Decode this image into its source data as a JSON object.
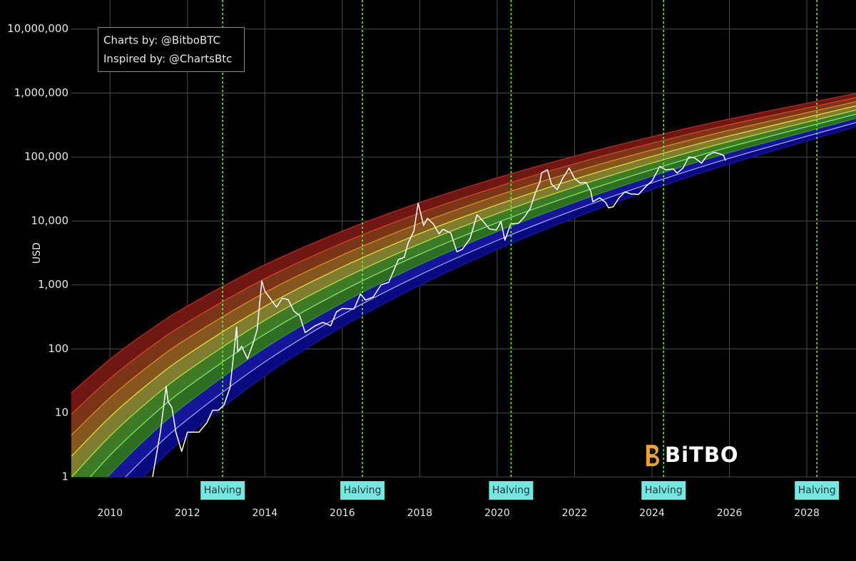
{
  "chart_data": {
    "type": "line",
    "y_scale": "log",
    "y_label": "USD",
    "credits": [
      "Charts by: @BitboBTC",
      "Inspired by: @ChartsBtc"
    ],
    "logo": "BiTBO",
    "grid": true,
    "xlim": [
      2009,
      2029.27
    ],
    "xticks": [
      2010,
      2012,
      2014,
      2016,
      2018,
      2020,
      2022,
      2024,
      2026,
      2028
    ],
    "ylim": [
      1,
      28400000
    ],
    "yticks": [
      1,
      10,
      100,
      {
        "value": 1000,
        "label": "1,000"
      },
      {
        "value": 10000,
        "label": "10,000"
      },
      {
        "value": 100000,
        "label": "100,000"
      },
      {
        "value": 1000000,
        "label": "1,000,000"
      },
      {
        "value": 10000000,
        "label": "10,000,000"
      }
    ],
    "halvings": [
      {
        "x": 2012.91,
        "label": "Halving"
      },
      {
        "x": 2016.52,
        "label": "Halving"
      },
      {
        "x": 2020.36,
        "label": "Halving"
      },
      {
        "x": 2024.3,
        "label": "Halving"
      },
      {
        "x": 2028.26,
        "label": "Halving"
      }
    ],
    "halving_color": "#7cf050",
    "bands": {
      "x": [
        2009,
        2010,
        2011,
        2012,
        2014,
        2016,
        2018,
        2020,
        2022,
        2024,
        2026,
        2029.27
      ],
      "fill_colors": [
        "#6e1713",
        "#7a3518",
        "#86561f",
        "#807c30",
        "#3f7a26",
        "#2f6e22",
        "#16169a",
        "#0a0a80"
      ],
      "edges": [
        {
          "color": "#b8302a",
          "values": [
            20.5,
            68.9,
            192,
            468,
            2065,
            6930,
            19400,
            47100,
            103000,
            208000,
            392000,
            986000
          ]
        },
        {
          "color": "#e0442e",
          "values": [
            9.57,
            34.5,
            102,
            261,
            1253,
            4510,
            13300,
            34100,
            78200,
            164000,
            320000,
            849000
          ]
        },
        {
          "color": "#e8892e",
          "values": [
            4.48,
            17.3,
            54.2,
            146,
            760,
            2930,
            9200,
            24800,
            59200,
            129000,
            262000,
            731000
          ]
        },
        {
          "color": "#f0e040",
          "values": [
            2.09,
            8.67,
            28.8,
            81.5,
            462,
            1910,
            6340,
            17900,
            44900,
            102000,
            214000,
            630000
          ]
        },
        {
          "color": "#c8e040",
          "values": [
            0.98,
            4.35,
            15.3,
            45.4,
            281,
            1240,
            4380,
            13000,
            34000,
            80400,
            175000,
            542000
          ]
        },
        {
          "color": "#7cf070",
          "values": [
            0.458,
            2.18,
            8.11,
            25.4,
            170,
            807,
            3010,
            9420,
            25800,
            63400,
            143000,
            467000
          ]
        },
        {
          "color": "#2a9a2a",
          "values": [
            0.214,
            1.09,
            4.31,
            14.2,
            103,
            525,
            2070,
            6820,
            19500,
            50000,
            117000,
            402000
          ]
        },
        {
          "color": "#a8a8ff",
          "values": [
            0.1,
            0.547,
            2.29,
            7.91,
            62.7,
            342,
            1430,
            4950,
            14800,
            39400,
            95500,
            346000
          ]
        },
        {
          "color": "#1818b0",
          "values": [
            0.0468,
            0.273,
            1.21,
            4.4,
            38.1,
            222,
            986,
            3590,
            11200,
            31000,
            78000,
            298000
          ]
        }
      ]
    },
    "series": [
      {
        "color": "#ffffff",
        "x": [
          2011.1,
          2011.3,
          2011.45,
          2011.5,
          2011.6,
          2011.7,
          2011.85,
          2012.0,
          2012.15,
          2012.3,
          2012.5,
          2012.65,
          2012.8,
          2012.95,
          2013.1,
          2013.27,
          2013.3,
          2013.4,
          2013.55,
          2013.7,
          2013.8,
          2013.92,
          2014.0,
          2014.15,
          2014.3,
          2014.45,
          2014.6,
          2014.75,
          2014.9,
          2015.04,
          2015.3,
          2015.5,
          2015.7,
          2015.85,
          2016.0,
          2016.3,
          2016.47,
          2016.6,
          2016.8,
          2017.0,
          2017.2,
          2017.45,
          2017.6,
          2017.7,
          2017.85,
          2017.96,
          2018.1,
          2018.2,
          2018.35,
          2018.5,
          2018.6,
          2018.8,
          2018.96,
          2019.1,
          2019.3,
          2019.48,
          2019.6,
          2019.8,
          2019.98,
          2020.1,
          2020.2,
          2020.35,
          2020.55,
          2020.7,
          2020.85,
          2021.0,
          2021.1,
          2021.15,
          2021.3,
          2021.4,
          2021.55,
          2021.7,
          2021.86,
          2022.0,
          2022.15,
          2022.3,
          2022.42,
          2022.47,
          2022.65,
          2022.8,
          2022.88,
          2023.0,
          2023.15,
          2023.3,
          2023.45,
          2023.65,
          2023.85,
          2024.0,
          2024.2,
          2024.35,
          2024.55,
          2024.65,
          2024.8,
          2024.95,
          2025.1,
          2025.28,
          2025.42,
          2025.6,
          2025.75,
          2025.85,
          2025.9
        ],
        "values": [
          1,
          5,
          26,
          15,
          12,
          5,
          2.5,
          5,
          5,
          5,
          7,
          11,
          11,
          13.5,
          25,
          220,
          90,
          110,
          70,
          125,
          200,
          1150,
          800,
          600,
          450,
          620,
          590,
          390,
          330,
          180,
          230,
          260,
          230,
          380,
          430,
          420,
          720,
          580,
          650,
          1000,
          1100,
          2500,
          2700,
          4500,
          7000,
          19000,
          8500,
          11000,
          9000,
          6300,
          7400,
          6500,
          3300,
          3600,
          5300,
          12500,
          10500,
          7500,
          7200,
          9800,
          5000,
          9000,
          9200,
          11500,
          15500,
          29000,
          40000,
          57000,
          63000,
          38000,
          31000,
          47000,
          67000,
          46000,
          39000,
          40000,
          29000,
          20000,
          23000,
          19500,
          16000,
          16700,
          23000,
          28500,
          26500,
          26000,
          35000,
          42000,
          71000,
          63000,
          65000,
          56000,
          67000,
          100000,
          97000,
          80000,
          105000,
          118000,
          112000,
          106000,
          88000
        ]
      }
    ]
  }
}
